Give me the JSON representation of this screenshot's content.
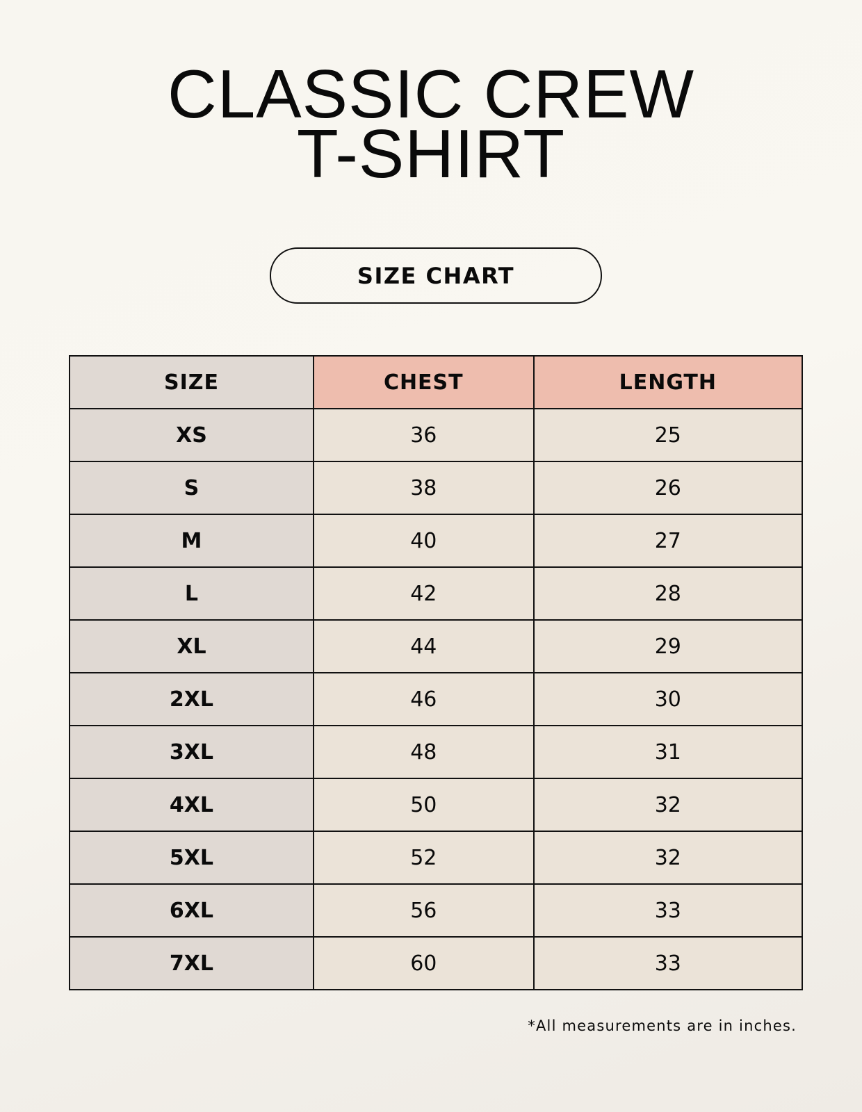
{
  "title": {
    "line1": "CLASSIC CREW",
    "line2": "T-SHIRT"
  },
  "subtitle": "SIZE CHART",
  "colors": {
    "size_column": "#e0d9d3",
    "header_accent": "#eebdae",
    "value_cells": "#ebe3d8"
  },
  "table": {
    "headers": [
      "SIZE",
      "CHEST",
      "LENGTH"
    ],
    "rows": [
      [
        "XS",
        "36",
        "25"
      ],
      [
        "S",
        "38",
        "26"
      ],
      [
        "M",
        "40",
        "27"
      ],
      [
        "L",
        "42",
        "28"
      ],
      [
        "XL",
        "44",
        "29"
      ],
      [
        "2XL",
        "46",
        "30"
      ],
      [
        "3XL",
        "48",
        "31"
      ],
      [
        "4XL",
        "50",
        "32"
      ],
      [
        "5XL",
        "52",
        "32"
      ],
      [
        "6XL",
        "56",
        "33"
      ],
      [
        "7XL",
        "60",
        "33"
      ]
    ]
  },
  "footnote": "*All measurements are in inches."
}
